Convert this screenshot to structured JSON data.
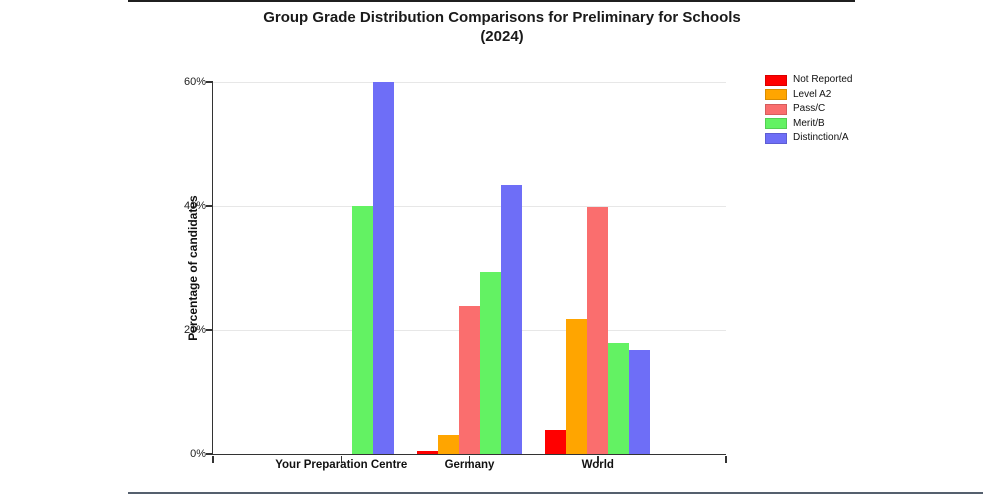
{
  "page": {
    "top_rule": true,
    "bottom_rule": true
  },
  "chart_data": {
    "type": "bar",
    "title": "Group Grade Distribution Comparisons for Preliminary for Schools (2024)",
    "title_lines": [
      "Group Grade Distribution Comparisons for Preliminary for Schools",
      "(2024)"
    ],
    "ylabel": "Percentage of candidates",
    "xlabel": "",
    "ylim": [
      0,
      60
    ],
    "ytick_values": [
      0,
      20,
      40,
      60
    ],
    "ytick_labels": [
      "0%",
      "20%",
      "40%",
      "60%"
    ],
    "gridlines": [
      20,
      40,
      60
    ],
    "grid": true,
    "legend_position": "top-right",
    "categories": [
      "Your Preparation Centre",
      "Germany",
      "World"
    ],
    "series": [
      {
        "name": "Not Reported",
        "color": "#ff0000",
        "values": [
          0,
          0.5,
          3.8
        ]
      },
      {
        "name": "Level A2",
        "color": "#ffa500",
        "values": [
          0,
          3.0,
          21.8
        ]
      },
      {
        "name": "Pass/C",
        "color": "#fa6e6e",
        "values": [
          0,
          23.8,
          39.8
        ]
      },
      {
        "name": "Merit/B",
        "color": "#63f263",
        "values": [
          40,
          29.3,
          17.9
        ]
      },
      {
        "name": "Distinction/A",
        "color": "#6e6ef7",
        "values": [
          60,
          43.4,
          16.7
        ]
      }
    ]
  }
}
